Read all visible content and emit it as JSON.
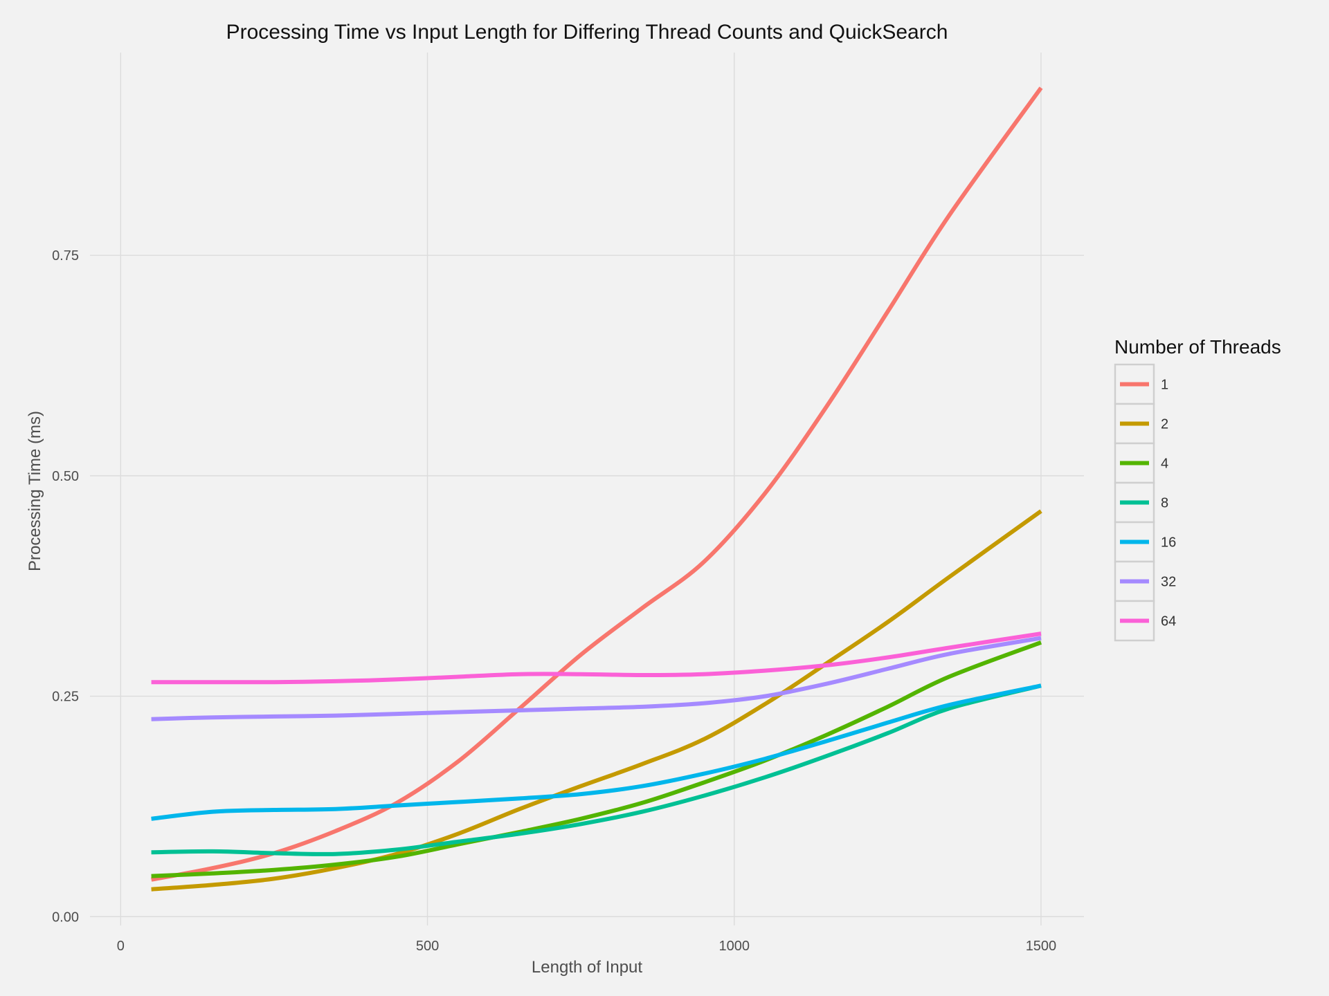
{
  "chart_data": {
    "type": "line",
    "title": "Processing Time vs Input Length for Differing Thread Counts and QuickSearch",
    "xlabel": "Length of Input",
    "ylabel": "Processing Time (ms)",
    "xlim": [
      -50,
      1570
    ],
    "ylim": [
      -0.01,
      0.98
    ],
    "x_ticks": [
      0,
      500,
      1000,
      1500
    ],
    "x_tick_labels": [
      "0",
      "500",
      "1000",
      "1500"
    ],
    "y_ticks": [
      0,
      0.25,
      0.5,
      0.75
    ],
    "y_tick_labels": [
      "0.00",
      "0.25",
      "0.50",
      "0.75"
    ],
    "grid": true,
    "legend": {
      "title": "Number of Threads",
      "position": "right"
    },
    "x": [
      50,
      150,
      250,
      350,
      450,
      550,
      650,
      750,
      850,
      950,
      1050,
      1150,
      1250,
      1350,
      1500
    ],
    "series": [
      {
        "name": "1",
        "color": "#f8766d",
        "values": [
          0.042,
          0.055,
          0.072,
          0.097,
          0.129,
          0.176,
          0.236,
          0.297,
          0.35,
          0.402,
          0.48,
          0.578,
          0.686,
          0.795,
          0.94
        ]
      },
      {
        "name": "2",
        "color": "#c49a00",
        "values": [
          0.031,
          0.036,
          0.043,
          0.055,
          0.071,
          0.094,
          0.122,
          0.148,
          0.173,
          0.201,
          0.241,
          0.287,
          0.334,
          0.385,
          0.46
        ]
      },
      {
        "name": "4",
        "color": "#53b400",
        "values": [
          0.046,
          0.049,
          0.053,
          0.059,
          0.068,
          0.082,
          0.096,
          0.111,
          0.129,
          0.152,
          0.177,
          0.206,
          0.238,
          0.272,
          0.311
        ]
      },
      {
        "name": "8",
        "color": "#00c094",
        "values": [
          0.073,
          0.074,
          0.072,
          0.071,
          0.076,
          0.085,
          0.094,
          0.105,
          0.119,
          0.137,
          0.158,
          0.182,
          0.208,
          0.236,
          0.262
        ]
      },
      {
        "name": "16",
        "color": "#00b6eb",
        "values": [
          0.111,
          0.119,
          0.121,
          0.122,
          0.126,
          0.13,
          0.134,
          0.139,
          0.148,
          0.162,
          0.179,
          0.199,
          0.22,
          0.24,
          0.262
        ]
      },
      {
        "name": "32",
        "color": "#a58aff",
        "values": [
          0.224,
          0.226,
          0.227,
          0.228,
          0.23,
          0.232,
          0.234,
          0.236,
          0.238,
          0.242,
          0.25,
          0.264,
          0.281,
          0.298,
          0.316
        ]
      },
      {
        "name": "64",
        "color": "#fb61d7",
        "values": [
          0.266,
          0.266,
          0.266,
          0.267,
          0.269,
          0.272,
          0.275,
          0.275,
          0.274,
          0.275,
          0.279,
          0.285,
          0.294,
          0.305,
          0.321
        ]
      }
    ]
  }
}
